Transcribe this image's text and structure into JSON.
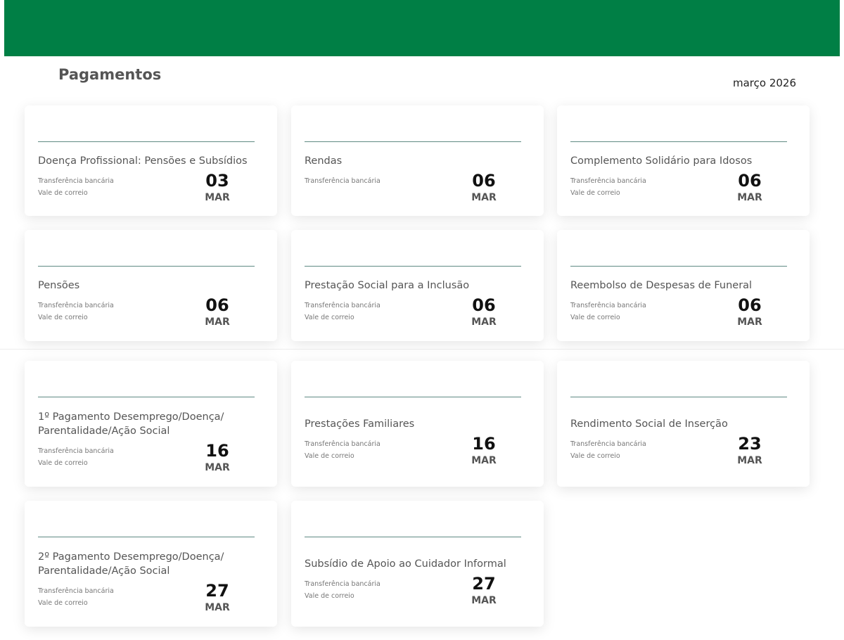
{
  "header": {
    "color": "#007f45"
  },
  "page": {
    "title": "Pagamentos",
    "month": "março 2026"
  },
  "cards": [
    {
      "title": "Doença Profissional: Pensões e Subsídios",
      "methods": [
        "Transferência bancária",
        "Vale de correio"
      ],
      "day": "03",
      "month": "MAR"
    },
    {
      "title": "Rendas",
      "methods": [
        "Transferência bancária"
      ],
      "day": "06",
      "month": "MAR"
    },
    {
      "title": "Complemento Solidário para Idosos",
      "methods": [
        "Transferência bancária",
        "Vale de correio"
      ],
      "day": "06",
      "month": "MAR"
    },
    {
      "title": "Pensões",
      "methods": [
        "Transferência bancária",
        "Vale de correio"
      ],
      "day": "06",
      "month": "MAR"
    },
    {
      "title": "Prestação Social para a Inclusão",
      "methods": [
        "Transferência bancária",
        "Vale de correio"
      ],
      "day": "06",
      "month": "MAR"
    },
    {
      "title": "Reembolso de Despesas de Funeral",
      "methods": [
        "Transferência bancária",
        "Vale de correio"
      ],
      "day": "06",
      "month": "MAR"
    },
    {
      "title": "1º Pagamento Desemprego/Doença/ Parentalidade/Ação Social",
      "methods": [
        "Transferência bancária",
        "Vale de correio"
      ],
      "day": "16",
      "month": "MAR"
    },
    {
      "title": "Prestações Familiares",
      "methods": [
        "Transferência bancária",
        "Vale de correio"
      ],
      "day": "16",
      "month": "MAR"
    },
    {
      "title": "Rendimento Social de Inserção",
      "methods": [
        "Transferência bancária",
        "Vale de correio"
      ],
      "day": "23",
      "month": "MAR"
    },
    {
      "title": "2º Pagamento Desemprego/Doença/ Parentalidade/Ação Social",
      "methods": [
        "Transferência bancária",
        "Vale de correio"
      ],
      "day": "27",
      "month": "MAR"
    },
    {
      "title": "Subsídio de Apoio ao Cuidador Informal",
      "methods": [
        "Transferência bancária",
        "Vale de correio"
      ],
      "day": "27",
      "month": "MAR"
    }
  ]
}
